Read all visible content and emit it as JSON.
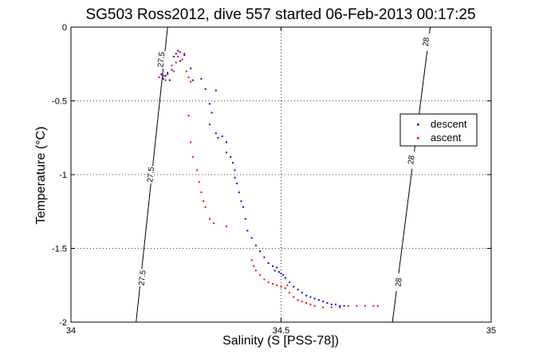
{
  "chart_data": {
    "type": "scatter",
    "title": "SG503 Ross2012, dive 557 started 06-Feb-2013 00:17:25",
    "xlabel": "Salinity (S [PSS-78])",
    "ylabel": "Temperature (°C)",
    "xlim": [
      34,
      35
    ],
    "ylim": [
      -2,
      0
    ],
    "x_ticks": [
      34,
      34.5,
      35
    ],
    "x_tick_labels": [
      "34",
      "34.5",
      "35"
    ],
    "y_ticks": [
      -2,
      -1.5,
      -1,
      -0.5,
      0
    ],
    "y_tick_labels": [
      "-2",
      "-1.5",
      "-1",
      "-0.5",
      "0"
    ],
    "grid": true,
    "legend_position": "right",
    "series": [
      {
        "name": "descent",
        "color": "#0000ff",
        "points": [
          [
            34.225,
            -0.33
          ],
          [
            34.23,
            -0.31
          ],
          [
            34.22,
            -0.35
          ],
          [
            34.215,
            -0.32
          ],
          [
            34.24,
            -0.29
          ],
          [
            34.235,
            -0.36
          ],
          [
            34.245,
            -0.2
          ],
          [
            34.25,
            -0.18
          ],
          [
            34.255,
            -0.16
          ],
          [
            34.26,
            -0.23
          ],
          [
            34.27,
            -0.19
          ],
          [
            34.285,
            -0.28
          ],
          [
            34.29,
            -0.36
          ],
          [
            34.31,
            -0.35
          ],
          [
            34.32,
            -0.42
          ],
          [
            34.33,
            -0.52
          ],
          [
            34.345,
            -0.43
          ],
          [
            34.335,
            -0.58
          ],
          [
            34.33,
            -0.66
          ],
          [
            34.345,
            -0.72
          ],
          [
            34.35,
            -0.75
          ],
          [
            34.36,
            -0.74
          ],
          [
            34.37,
            -0.78
          ],
          [
            34.37,
            -0.85
          ],
          [
            34.38,
            -0.88
          ],
          [
            34.385,
            -0.92
          ],
          [
            34.39,
            -0.97
          ],
          [
            34.39,
            -1.02
          ],
          [
            34.395,
            -1.06
          ],
          [
            34.4,
            -1.12
          ],
          [
            34.405,
            -1.18
          ],
          [
            34.41,
            -1.22
          ],
          [
            34.415,
            -1.3
          ],
          [
            34.42,
            -1.38
          ],
          [
            34.43,
            -1.43
          ],
          [
            34.44,
            -1.48
          ],
          [
            34.45,
            -1.52
          ],
          [
            34.46,
            -1.56
          ],
          [
            34.47,
            -1.6
          ],
          [
            34.48,
            -1.62
          ],
          [
            34.485,
            -1.65
          ],
          [
            34.49,
            -1.63
          ],
          [
            34.495,
            -1.66
          ],
          [
            34.5,
            -1.67
          ],
          [
            34.505,
            -1.68
          ],
          [
            34.51,
            -1.7
          ],
          [
            34.52,
            -1.73
          ],
          [
            34.53,
            -1.76
          ],
          [
            34.54,
            -1.78
          ],
          [
            34.55,
            -1.8
          ],
          [
            34.56,
            -1.82
          ],
          [
            34.57,
            -1.83
          ],
          [
            34.58,
            -1.84
          ],
          [
            34.59,
            -1.85
          ],
          [
            34.6,
            -1.86
          ],
          [
            34.61,
            -1.87
          ],
          [
            34.62,
            -1.88
          ],
          [
            34.63,
            -1.88
          ],
          [
            34.64,
            -1.89
          ],
          [
            34.65,
            -1.89
          ]
        ]
      },
      {
        "name": "ascent",
        "color": "#ff0000",
        "points": [
          [
            34.21,
            -0.34
          ],
          [
            34.22,
            -0.33
          ],
          [
            34.225,
            -0.36
          ],
          [
            34.23,
            -0.32
          ],
          [
            34.24,
            -0.26
          ],
          [
            34.245,
            -0.3
          ],
          [
            34.25,
            -0.24
          ],
          [
            34.255,
            -0.2
          ],
          [
            34.26,
            -0.17
          ],
          [
            34.265,
            -0.22
          ],
          [
            34.27,
            -0.18
          ],
          [
            34.275,
            -0.3
          ],
          [
            34.28,
            -0.34
          ],
          [
            34.285,
            -0.37
          ],
          [
            34.28,
            -0.6
          ],
          [
            34.285,
            -0.78
          ],
          [
            34.29,
            -0.88
          ],
          [
            34.3,
            -0.97
          ],
          [
            34.305,
            -1.05
          ],
          [
            34.31,
            -1.12
          ],
          [
            34.315,
            -1.18
          ],
          [
            34.32,
            -1.22
          ],
          [
            34.33,
            -1.3
          ],
          [
            34.34,
            -1.33
          ],
          [
            34.37,
            -1.35
          ],
          [
            34.43,
            -1.58
          ],
          [
            34.435,
            -1.62
          ],
          [
            34.44,
            -1.65
          ],
          [
            34.45,
            -1.68
          ],
          [
            34.46,
            -1.71
          ],
          [
            34.47,
            -1.73
          ],
          [
            34.48,
            -1.74
          ],
          [
            34.49,
            -1.75
          ],
          [
            34.5,
            -1.76
          ],
          [
            34.51,
            -1.77
          ],
          [
            34.515,
            -1.75
          ],
          [
            34.52,
            -1.8
          ],
          [
            34.53,
            -1.83
          ],
          [
            34.54,
            -1.85
          ],
          [
            34.55,
            -1.86
          ],
          [
            34.56,
            -1.87
          ],
          [
            34.57,
            -1.88
          ],
          [
            34.58,
            -1.89
          ],
          [
            34.6,
            -1.9
          ],
          [
            34.62,
            -1.9
          ],
          [
            34.64,
            -1.9
          ],
          [
            34.66,
            -1.89
          ],
          [
            34.68,
            -1.89
          ],
          [
            34.7,
            -1.89
          ],
          [
            34.72,
            -1.89
          ],
          [
            34.73,
            -1.89
          ]
        ]
      }
    ],
    "density_contours": [
      {
        "label": "27.5",
        "line": [
          [
            34.155,
            -2
          ],
          [
            34.23,
            0
          ]
        ],
        "label_positions": [
          [
            34.17,
            -1.7
          ],
          [
            34.19,
            -1.0
          ],
          [
            34.215,
            -0.22
          ]
        ],
        "label_text": [
          "27.5",
          "27.5",
          "27.5"
        ]
      },
      {
        "label": "28",
        "line": [
          [
            34.765,
            -2
          ],
          [
            34.855,
            0
          ]
        ],
        "label_positions": [
          [
            34.78,
            -1.73
          ],
          [
            34.81,
            -0.9
          ],
          [
            34.845,
            -0.1
          ]
        ],
        "label_text": [
          "28",
          "28",
          "28"
        ]
      }
    ]
  }
}
